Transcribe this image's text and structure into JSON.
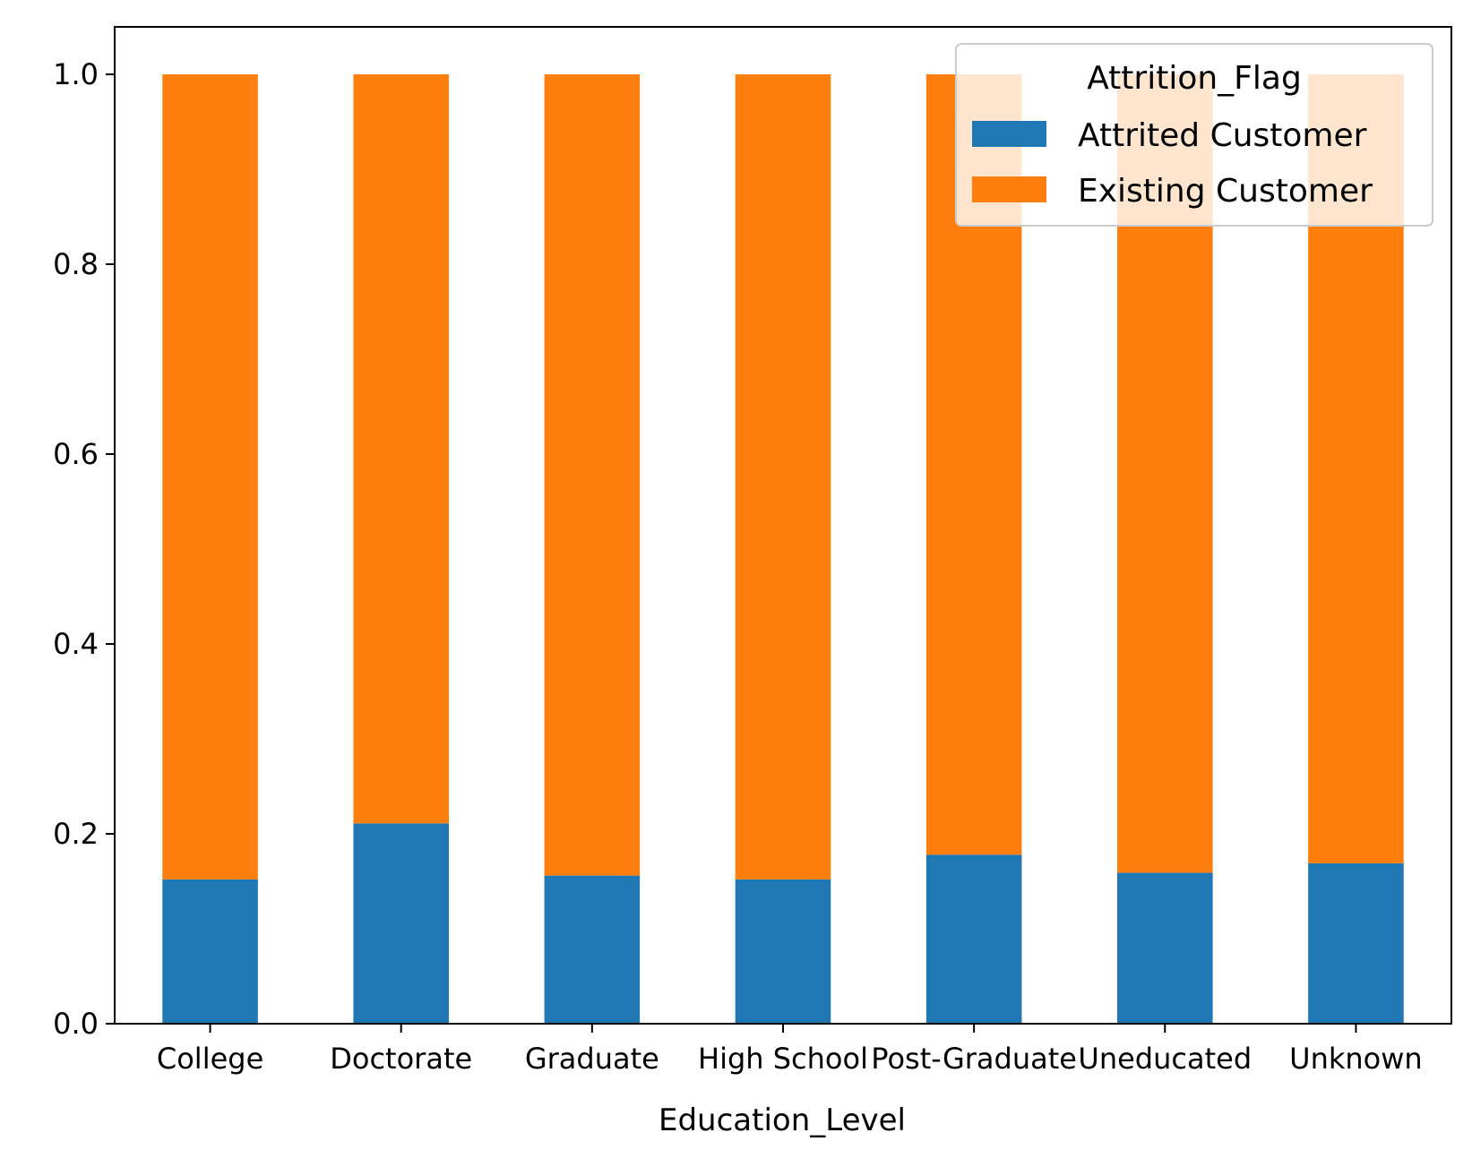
{
  "chart_data": {
    "type": "bar",
    "stacked": true,
    "title": "",
    "xlabel": "Education_Level",
    "ylabel": "",
    "categories": [
      "College",
      "Doctorate",
      "Graduate",
      "High School",
      "Post-Graduate",
      "Uneducated",
      "Unknown"
    ],
    "series": [
      {
        "name": "Attrited Customer",
        "color": "#1f77b4",
        "values": [
          0.152,
          0.211,
          0.156,
          0.152,
          0.178,
          0.159,
          0.169
        ]
      },
      {
        "name": "Existing Customer",
        "color": "#ff7f0e",
        "values": [
          0.848,
          0.789,
          0.844,
          0.848,
          0.822,
          0.841,
          0.831
        ]
      }
    ],
    "ylim": [
      0,
      1.05
    ],
    "yticks": [
      0.0,
      0.2,
      0.4,
      0.6,
      0.8,
      1.0
    ],
    "ytick_labels": [
      "0.0",
      "0.2",
      "0.4",
      "0.6",
      "0.8",
      "1.0"
    ],
    "grid": false,
    "legend": {
      "title": "Attrition_Flag",
      "placement": "top-right"
    }
  }
}
